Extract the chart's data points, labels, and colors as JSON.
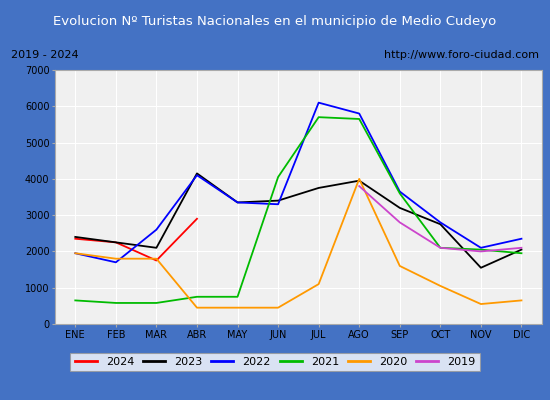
{
  "title": "Evolucion Nº Turistas Nacionales en el municipio de Medio Cudeyo",
  "subtitle_left": "2019 - 2024",
  "subtitle_right": "http://www.foro-ciudad.com",
  "months": [
    "ENE",
    "FEB",
    "MAR",
    "ABR",
    "MAY",
    "JUN",
    "JUL",
    "AGO",
    "SEP",
    "OCT",
    "NOV",
    "DIC"
  ],
  "ylim": [
    0,
    7000
  ],
  "yticks": [
    0,
    1000,
    2000,
    3000,
    4000,
    5000,
    6000,
    7000
  ],
  "series": {
    "2024": {
      "color": "#ff0000",
      "data": [
        2350,
        2250,
        1750,
        2900,
        null,
        null,
        null,
        null,
        null,
        null,
        null,
        null
      ]
    },
    "2023": {
      "color": "#000000",
      "data": [
        2400,
        2250,
        2100,
        4150,
        3350,
        3400,
        3750,
        3950,
        3200,
        2750,
        1550,
        2050
      ]
    },
    "2022": {
      "color": "#0000ff",
      "data": [
        1950,
        1700,
        2600,
        4100,
        3350,
        3300,
        6100,
        5800,
        3650,
        2800,
        2100,
        2350
      ]
    },
    "2021": {
      "color": "#00bb00",
      "data": [
        650,
        580,
        580,
        750,
        750,
        4050,
        5700,
        5650,
        3600,
        2100,
        2050,
        1950
      ]
    },
    "2020": {
      "color": "#ff9900",
      "data": [
        1950,
        1800,
        1800,
        450,
        450,
        450,
        1100,
        4000,
        1600,
        1050,
        550,
        650
      ]
    },
    "2019": {
      "color": "#cc44cc",
      "data": [
        null,
        null,
        null,
        null,
        null,
        null,
        null,
        3800,
        2800,
        2100,
        2000,
        2100
      ]
    }
  },
  "legend_order": [
    "2024",
    "2023",
    "2022",
    "2021",
    "2020",
    "2019"
  ],
  "title_bg_color": "#4472c4",
  "title_font_color": "#ffffff",
  "subtitle_bg_color": "#e8e8e8",
  "plot_bg_color": "#f0f0f0",
  "grid_color": "#ffffff",
  "border_color": "#4472c4",
  "outer_bg_color": "#dddddd"
}
